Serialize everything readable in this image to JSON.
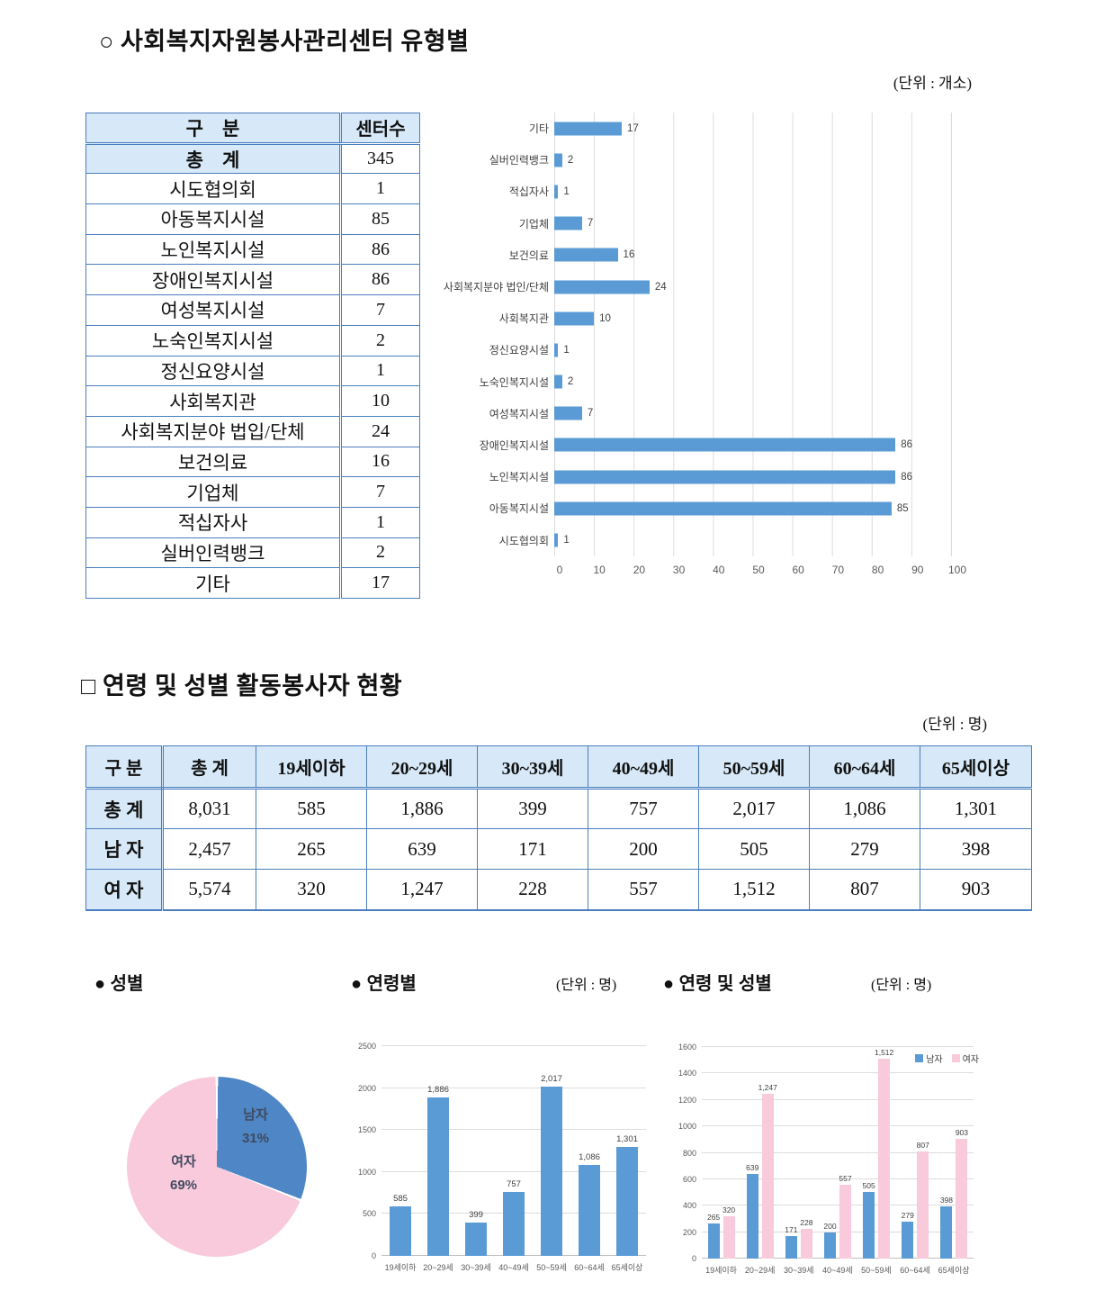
{
  "section1": {
    "title": "○ 사회복지자원봉사관리센터 유형별",
    "unit": "(단위 : 개소)",
    "table": {
      "col_headers": [
        "구    분",
        "센터수"
      ],
      "total": {
        "label": "총    계",
        "value": "345"
      },
      "rows": [
        {
          "label": "시도협의회",
          "value": "1"
        },
        {
          "label": "아동복지시설",
          "value": "85"
        },
        {
          "label": "노인복지시설",
          "value": "86"
        },
        {
          "label": "장애인복지시설",
          "value": "86"
        },
        {
          "label": "여성복지시설",
          "value": "7"
        },
        {
          "label": "노숙인복지시설",
          "value": "2"
        },
        {
          "label": "정신요양시설",
          "value": "1"
        },
        {
          "label": "사회복지관",
          "value": "10"
        },
        {
          "label": "사회복지분야 법입/단체",
          "value": "24"
        },
        {
          "label": "보건의료",
          "value": "16"
        },
        {
          "label": "기업체",
          "value": "7"
        },
        {
          "label": "적십자사",
          "value": "1"
        },
        {
          "label": "실버인력뱅크",
          "value": "2"
        },
        {
          "label": "기타",
          "value": "17"
        }
      ]
    }
  },
  "section2": {
    "title": "□ 연령 및 성별 활동봉사자 현황",
    "unit": "(단위 : 명)",
    "table": {
      "col_headers": [
        "구 분",
        "총 계",
        "19세이하",
        "20~29세",
        "30~39세",
        "40~49세",
        "50~59세",
        "60~64세",
        "65세이상"
      ],
      "rows": [
        {
          "label": "총 계",
          "values": [
            "8,031",
            "585",
            "1,886",
            "399",
            "757",
            "2,017",
            "1,086",
            "1,301"
          ]
        },
        {
          "label": "남 자",
          "values": [
            "2,457",
            "265",
            "639",
            "171",
            "200",
            "505",
            "279",
            "398"
          ]
        },
        {
          "label": "여 자",
          "values": [
            "5,574",
            "320",
            "1,247",
            "228",
            "557",
            "1,512",
            "807",
            "903"
          ]
        }
      ]
    }
  },
  "mini_sections": {
    "pie_title": "● 성별",
    "age_title": "● 연령별",
    "age_unit": "(단위 : 명)",
    "agegender_title": "● 연령 및 성별",
    "agegender_unit": "(단위 : 명)"
  },
  "chart_data": [
    {
      "id": "center-type",
      "type": "bar",
      "orientation": "horizontal",
      "categories": [
        "기타",
        "실버인력뱅크",
        "적십자사",
        "기업체",
        "보건의료",
        "사회복지분야 법인/단체",
        "사회복지관",
        "정신요양시설",
        "노숙인복지시설",
        "여성복지시설",
        "장애인복지시설",
        "노인복지시설",
        "아동복지시설",
        "시도협의회"
      ],
      "values": [
        17,
        2,
        1,
        7,
        16,
        24,
        10,
        1,
        2,
        7,
        86,
        86,
        85,
        1
      ],
      "value_labels": [
        "17",
        "2",
        "1",
        "7",
        "16",
        "24",
        "10",
        "1",
        "2",
        "7",
        "86",
        "86",
        "85",
        "1"
      ],
      "xlim": [
        0,
        100
      ],
      "xticks": [
        0,
        10,
        20,
        30,
        40,
        50,
        60,
        70,
        80,
        90,
        100
      ],
      "grid": true,
      "bar_color": "#5b9bd5"
    },
    {
      "id": "gender-pie",
      "type": "pie",
      "labels": [
        "남자",
        "여자"
      ],
      "values": [
        31,
        69
      ],
      "value_labels": [
        "31%",
        "69%"
      ],
      "colors": [
        "#4f86c6",
        "#f9c9dc"
      ]
    },
    {
      "id": "age-bar",
      "type": "bar",
      "categories": [
        "19세이하",
        "20~29세",
        "30~39세",
        "40~49세",
        "50~59세",
        "60~64세",
        "65세이상"
      ],
      "values": [
        585,
        1886,
        399,
        757,
        2017,
        1086,
        1301
      ],
      "value_labels": [
        "585",
        "1,886",
        "399",
        "757",
        "2,017",
        "1,086",
        "1,301"
      ],
      "ylim": [
        0,
        2500
      ],
      "yticks": [
        0,
        500,
        1000,
        1500,
        2000,
        2500
      ],
      "grid": true,
      "bar_color": "#5b9bd5"
    },
    {
      "id": "age-gender-bar",
      "type": "bar",
      "categories": [
        "19세이하",
        "20~29세",
        "30~39세",
        "40~49세",
        "50~59세",
        "60~64세",
        "65세이상"
      ],
      "series": [
        {
          "name": "남자",
          "color": "#5b9bd5",
          "values": [
            265,
            639,
            171,
            200,
            505,
            279,
            398
          ],
          "value_labels": [
            "265",
            "639",
            "171",
            "200",
            "505",
            "279",
            "398"
          ]
        },
        {
          "name": "여자",
          "color": "#f9c9dc",
          "values": [
            320,
            1247,
            228,
            557,
            1512,
            807,
            903
          ],
          "value_labels": [
            "320",
            "1,247",
            "228",
            "557",
            "1,512",
            "807",
            "903"
          ]
        }
      ],
      "ylim": [
        0,
        1600
      ],
      "yticks": [
        0,
        200,
        400,
        600,
        800,
        1000,
        1200,
        1400,
        1600
      ],
      "grid": true,
      "legend_position": "top-right"
    }
  ],
  "colors": {
    "table_border": "#4a7ebf",
    "header_bg": "#d7e9f8",
    "bar_blue": "#5b9bd5",
    "pie_blue": "#4f86c6",
    "pink": "#f9c9dc",
    "grid_gray": "#dcdcdc",
    "axis_text": "#595959"
  }
}
